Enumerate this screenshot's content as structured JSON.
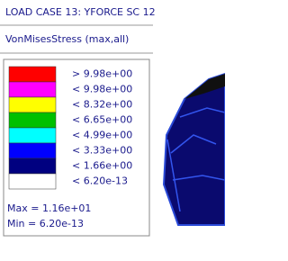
{
  "header": {
    "title": "LOAD CASE 13: YFORCE SC 12",
    "subtitle": "VonMisesStress (max,all)"
  },
  "legend": {
    "items": [
      {
        "color": "#ff0000",
        "label": "> 9.98e+00"
      },
      {
        "color": "#ff00ff",
        "label": "< 9.98e+00"
      },
      {
        "color": "#ffff00",
        "label": "< 8.32e+00"
      },
      {
        "color": "#00c000",
        "label": "< 6.65e+00"
      },
      {
        "color": "#00ffff",
        "label": "< 4.99e+00"
      },
      {
        "color": "#0000ff",
        "label": "< 3.33e+00"
      },
      {
        "color": "#000080",
        "label": "< 1.66e+00"
      },
      {
        "color": "#ffffff",
        "label": "< 6.20e-13"
      }
    ],
    "max": "Max = 1.16e+01",
    "min": "Min = 6.20e-13"
  }
}
